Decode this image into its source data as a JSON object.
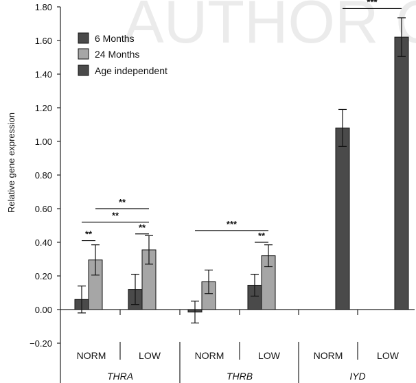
{
  "watermark": "AUTHOR C",
  "chart_data": {
    "type": "bar",
    "title": "",
    "ylabel": "Relative gene expression",
    "xlabel": "",
    "ylim": [
      -0.2,
      1.8
    ],
    "yticks": [
      -0.2,
      0.0,
      0.2,
      0.4,
      0.6,
      0.8,
      1.0,
      1.2,
      1.4,
      1.6,
      1.8
    ],
    "ytick_labels": [
      "−0.20",
      "0.00",
      "0.20",
      "0.40",
      "0.60",
      "0.80",
      "1.00",
      "1.20",
      "1.40",
      "1.60",
      "1.80"
    ],
    "grid": false,
    "legend_position": "top-left",
    "groups": [
      "THRA",
      "THRB",
      "IYD"
    ],
    "conditions": [
      "NORM",
      "LOW"
    ],
    "series": [
      {
        "name": "6 Months",
        "color": "#4a4a4a",
        "values": [
          0.06,
          0.12,
          -0.015,
          0.145,
          null,
          null
        ],
        "errors": [
          0.08,
          0.09,
          0.065,
          0.065,
          null,
          null
        ]
      },
      {
        "name": "24 Months",
        "color": "#a6a6a6",
        "values": [
          0.295,
          0.355,
          0.165,
          0.32,
          null,
          null
        ],
        "errors": [
          0.09,
          0.085,
          0.07,
          0.065,
          null,
          null
        ]
      },
      {
        "name": "Age independent",
        "color": "#4a4a4a",
        "values": [
          null,
          null,
          null,
          null,
          1.08,
          1.62
        ],
        "errors": [
          null,
          null,
          null,
          null,
          0.11,
          0.115
        ]
      }
    ],
    "significance": [
      {
        "label": "**",
        "from": "THRA NORM 6 Months",
        "to": "THRA NORM 24 Months",
        "y": 0.41
      },
      {
        "label": "**",
        "from": "THRA NORM 6 Months",
        "to": "THRA LOW 24 Months",
        "y": 0.52
      },
      {
        "label": "**",
        "from": "THRA NORM 24 Months",
        "to": "THRA LOW 24 Months",
        "y": 0.6
      },
      {
        "label": "**",
        "from": "THRA LOW 6 Months",
        "to": "THRA LOW 24 Months",
        "y": 0.45
      },
      {
        "label": "***",
        "from": "THRB NORM 6 Months",
        "to": "THRB LOW 24 Months",
        "y": 0.47
      },
      {
        "label": "**",
        "from": "THRB LOW 6 Months",
        "to": "THRB LOW 24 Months",
        "y": 0.4
      },
      {
        "label": "***",
        "from": "IYD NORM",
        "to": "IYD LOW",
        "y": 1.79
      }
    ]
  }
}
